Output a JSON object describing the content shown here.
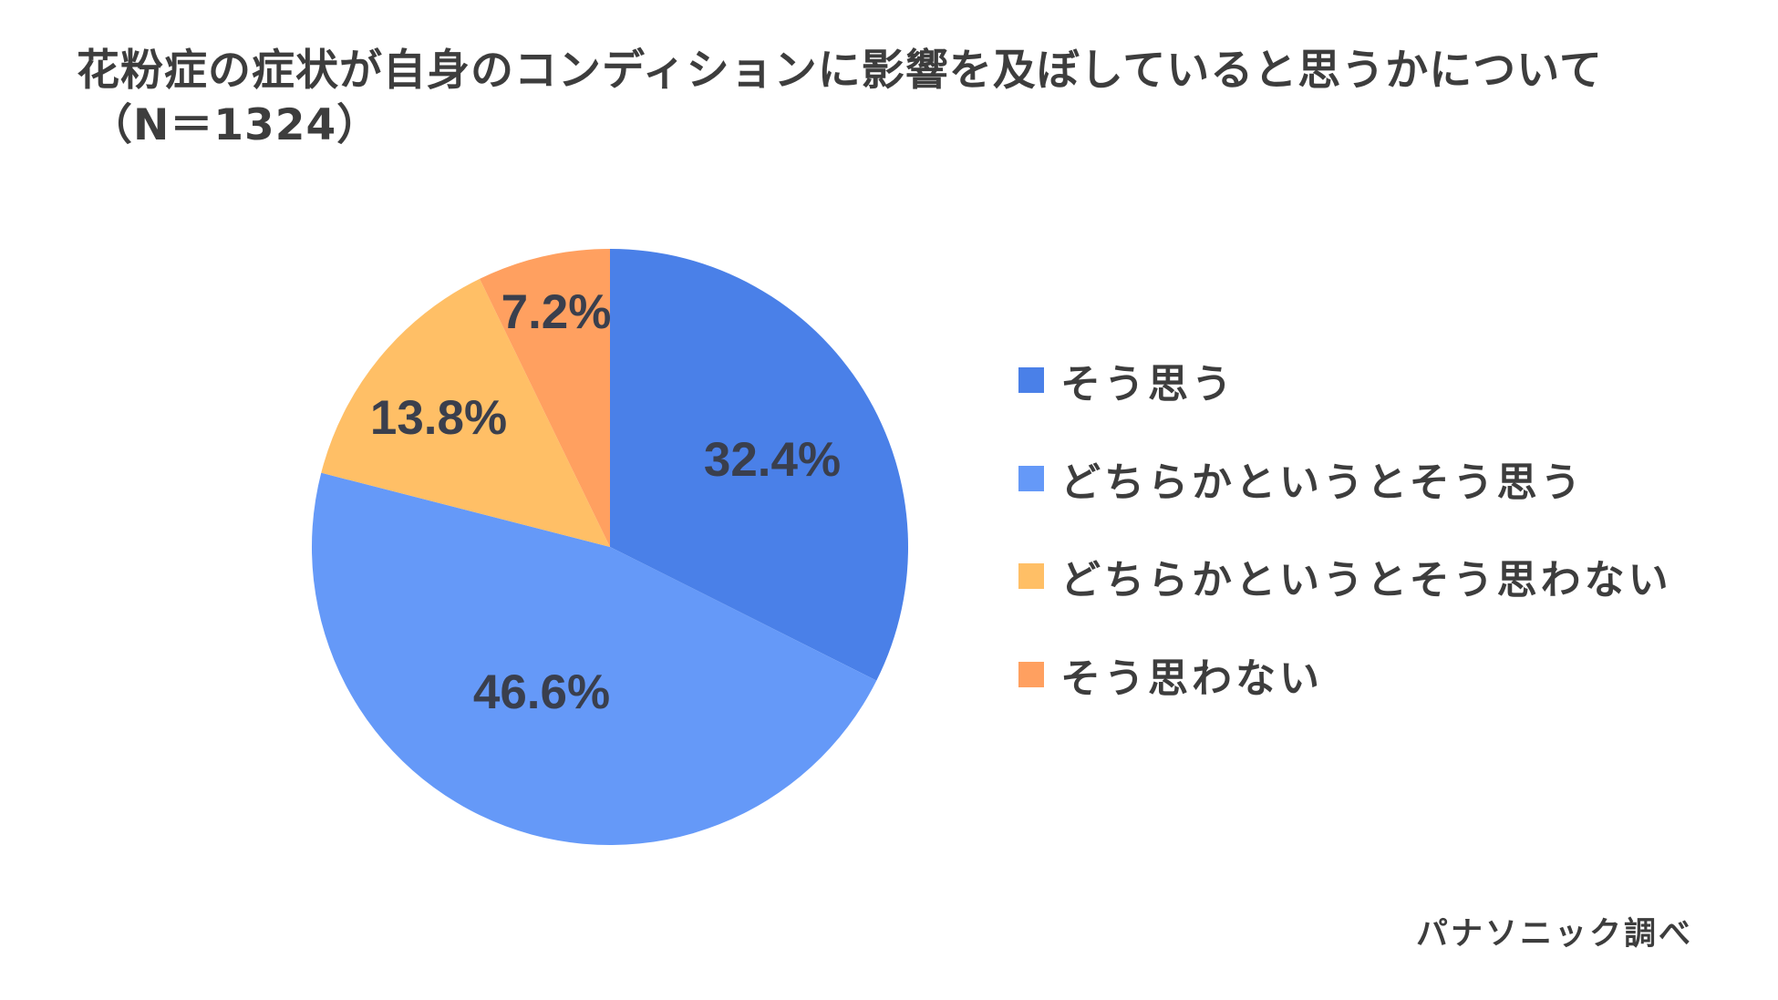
{
  "title": {
    "line1": "花粉症の症状が自身のコンディションに影響を及ぼしていると思うかについて",
    "line2": "（N＝1324）"
  },
  "legend": {
    "items": [
      {
        "label": "そう思う",
        "color": "#4A80E8"
      },
      {
        "label": "どちらかというとそう思う",
        "color": "#6599F8"
      },
      {
        "label": "どちらかというとそう思わない",
        "color": "#FFBF66"
      },
      {
        "label": "そう思わない",
        "color": "#FFA060"
      }
    ]
  },
  "slices": [
    {
      "label": "32.4%",
      "value": 32.4,
      "color": "#4A80E8"
    },
    {
      "label": "46.6%",
      "value": 46.6,
      "color": "#6599F8"
    },
    {
      "label": "13.8%",
      "value": 13.8,
      "color": "#FFBF66"
    },
    {
      "label": "7.2%",
      "value": 7.2,
      "color": "#FFA060"
    }
  ],
  "footer": {
    "source": "パナソニック調べ"
  },
  "chart_data": {
    "type": "pie",
    "title": "花粉症の症状が自身のコンディションに影響を及ぼしていると思うかについて（N＝1324）",
    "categories": [
      "そう思う",
      "どちらかというとそう思う",
      "どちらかというとそう思わない",
      "そう思わない"
    ],
    "values": [
      32.4,
      46.6,
      13.8,
      7.2
    ],
    "value_labels": [
      "32.4%",
      "46.6%",
      "13.8%",
      "7.2%"
    ],
    "colors": [
      "#4A80E8",
      "#6599F8",
      "#FFBF66",
      "#FFA060"
    ],
    "start_angle": "12 o'clock",
    "direction": "clockwise",
    "legend_position": "right",
    "sample_size": 1324,
    "source": "パナソニック調べ"
  }
}
